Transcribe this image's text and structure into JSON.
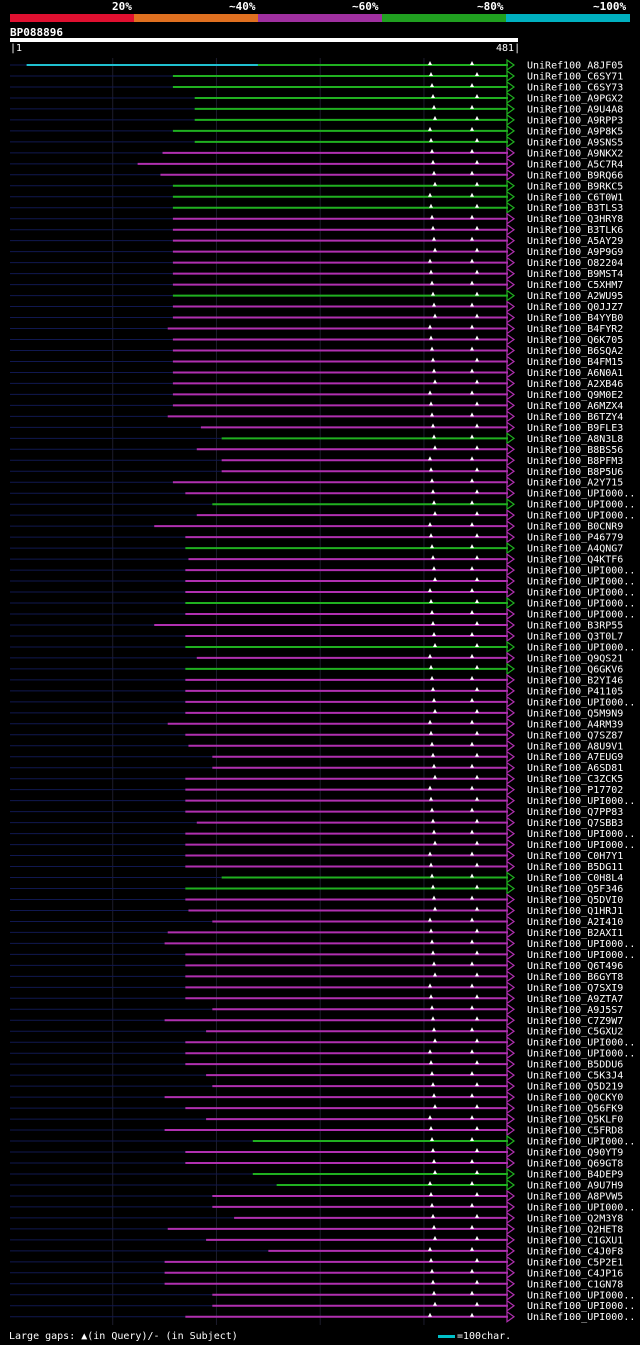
{
  "legend": {
    "labels": [
      "20%",
      "~40%",
      "~60%",
      "~80%",
      "~100%"
    ],
    "colors": [
      "#e01030",
      "#e07020",
      "#a030a0",
      "#20a020",
      "#00b0c0"
    ]
  },
  "query": {
    "name": "BP088896",
    "start": "1",
    "end": "481",
    "length": 481
  },
  "hit_colors": {
    "cyan": "#20c0d0",
    "green": "#20b020",
    "magenta": "#b030b0",
    "line": "#101850"
  },
  "hits": [
    {
      "label": "UniRef100_A8JF05",
      "start": 17,
      "color": "cyan",
      "split": 240
    },
    {
      "label": "UniRef100_C6SY71",
      "start": 158,
      "color": "green"
    },
    {
      "label": "UniRef100_C6SY73",
      "start": 158,
      "color": "green"
    },
    {
      "label": "UniRef100_A9PGX2",
      "start": 179,
      "color": "green"
    },
    {
      "label": "UniRef100_A9U4A8",
      "start": 179,
      "color": "green"
    },
    {
      "label": "UniRef100_A9RPP3",
      "start": 179,
      "color": "green"
    },
    {
      "label": "UniRef100_A9P8K5",
      "start": 158,
      "color": "green"
    },
    {
      "label": "UniRef100_A9SNS5",
      "start": 179,
      "color": "green"
    },
    {
      "label": "UniRef100_A9NKX2",
      "start": 148,
      "color": "magenta"
    },
    {
      "label": "UniRef100_A5C7R4",
      "start": 124,
      "color": "magenta"
    },
    {
      "label": "UniRef100_B9RQ66",
      "start": 146,
      "color": "magenta"
    },
    {
      "label": "UniRef100_B9RKC5",
      "start": 158,
      "color": "green"
    },
    {
      "label": "UniRef100_C6T0W1",
      "start": 158,
      "color": "green"
    },
    {
      "label": "UniRef100_B3TLS3",
      "start": 158,
      "color": "green"
    },
    {
      "label": "UniRef100_Q3HRY8",
      "start": 158,
      "color": "magenta"
    },
    {
      "label": "UniRef100_B3TLK6",
      "start": 158,
      "color": "magenta"
    },
    {
      "label": "UniRef100_A5AY29",
      "start": 158,
      "color": "magenta"
    },
    {
      "label": "UniRef100_A9P9G9",
      "start": 158,
      "color": "magenta"
    },
    {
      "label": "UniRef100_O82204",
      "start": 158,
      "color": "magenta"
    },
    {
      "label": "UniRef100_B9MST4",
      "start": 158,
      "color": "magenta"
    },
    {
      "label": "UniRef100_C5XHM7",
      "start": 158,
      "color": "magenta"
    },
    {
      "label": "UniRef100_A2WU95",
      "start": 158,
      "color": "green"
    },
    {
      "label": "UniRef100_Q0JJZ7",
      "start": 158,
      "color": "magenta"
    },
    {
      "label": "UniRef100_B4YYB0",
      "start": 158,
      "color": "magenta"
    },
    {
      "label": "UniRef100_B4FYR2",
      "start": 153,
      "color": "magenta"
    },
    {
      "label": "UniRef100_Q6K705",
      "start": 158,
      "color": "magenta"
    },
    {
      "label": "UniRef100_B6SQA2",
      "start": 158,
      "color": "magenta"
    },
    {
      "label": "UniRef100_B4FM15",
      "start": 158,
      "color": "magenta"
    },
    {
      "label": "UniRef100_A6N0A1",
      "start": 158,
      "color": "magenta"
    },
    {
      "label": "UniRef100_A2XB46",
      "start": 158,
      "color": "magenta"
    },
    {
      "label": "UniRef100_Q9M0E2",
      "start": 158,
      "color": "magenta"
    },
    {
      "label": "UniRef100_A6MZX4",
      "start": 158,
      "color": "magenta"
    },
    {
      "label": "UniRef100_B6TZY4",
      "start": 153,
      "color": "magenta"
    },
    {
      "label": "UniRef100_B9FLE3",
      "start": 185,
      "color": "magenta"
    },
    {
      "label": "UniRef100_A8N3L8",
      "start": 205,
      "color": "green"
    },
    {
      "label": "UniRef100_B8BS56",
      "start": 181,
      "color": "magenta"
    },
    {
      "label": "UniRef100_B8PFM3",
      "start": 205,
      "color": "magenta"
    },
    {
      "label": "UniRef100_B8P5U6",
      "start": 205,
      "color": "magenta"
    },
    {
      "label": "UniRef100_A2Y715",
      "start": 158,
      "color": "magenta"
    },
    {
      "label": "UniRef100_UPI000..",
      "start": 170,
      "color": "magenta"
    },
    {
      "label": "UniRef100_UPI000..",
      "start": 196,
      "color": "green"
    },
    {
      "label": "UniRef100_UPI000..",
      "start": 181,
      "color": "magenta"
    },
    {
      "label": "UniRef100_B0CNR9",
      "start": 140,
      "color": "magenta"
    },
    {
      "label": "UniRef100_P46779",
      "start": 170,
      "color": "magenta"
    },
    {
      "label": "UniRef100_A4QNG7",
      "start": 170,
      "color": "green"
    },
    {
      "label": "UniRef100_Q4KTF6",
      "start": 173,
      "color": "magenta"
    },
    {
      "label": "UniRef100_UPI000..",
      "start": 170,
      "color": "magenta"
    },
    {
      "label": "UniRef100_UPI000..",
      "start": 170,
      "color": "magenta"
    },
    {
      "label": "UniRef100_UPI000..",
      "start": 170,
      "color": "magenta"
    },
    {
      "label": "UniRef100_UPI000..",
      "start": 170,
      "color": "green"
    },
    {
      "label": "UniRef100_UPI000..",
      "start": 170,
      "color": "magenta"
    },
    {
      "label": "UniRef100_B3RP55",
      "start": 140,
      "color": "magenta"
    },
    {
      "label": "UniRef100_Q3T0L7",
      "start": 170,
      "color": "magenta"
    },
    {
      "label": "UniRef100_UPI000..",
      "start": 170,
      "color": "green"
    },
    {
      "label": "UniRef100_Q9QS21",
      "start": 181,
      "color": "magenta"
    },
    {
      "label": "UniRef100_Q6GKV6",
      "start": 170,
      "color": "green"
    },
    {
      "label": "UniRef100_B2YI46",
      "start": 170,
      "color": "magenta"
    },
    {
      "label": "UniRef100_P41105",
      "start": 170,
      "color": "magenta"
    },
    {
      "label": "UniRef100_UPI000..",
      "start": 170,
      "color": "magenta"
    },
    {
      "label": "UniRef100_Q5M9N9",
      "start": 170,
      "color": "magenta"
    },
    {
      "label": "UniRef100_A4RM39",
      "start": 153,
      "color": "magenta"
    },
    {
      "label": "UniRef100_Q7SZ87",
      "start": 170,
      "color": "magenta"
    },
    {
      "label": "UniRef100_A8U9V1",
      "start": 173,
      "color": "magenta"
    },
    {
      "label": "UniRef100_A7EUG9",
      "start": 196,
      "color": "magenta"
    },
    {
      "label": "UniRef100_A6SD81",
      "start": 196,
      "color": "magenta"
    },
    {
      "label": "UniRef100_C3ZCK5",
      "start": 170,
      "color": "magenta"
    },
    {
      "label": "UniRef100_P17702",
      "start": 170,
      "color": "magenta"
    },
    {
      "label": "UniRef100_UPI000..",
      "start": 170,
      "color": "magenta"
    },
    {
      "label": "UniRef100_Q7PP83",
      "start": 170,
      "color": "magenta"
    },
    {
      "label": "UniRef100_Q7SBB3",
      "start": 181,
      "color": "magenta"
    },
    {
      "label": "UniRef100_UPI000..",
      "start": 170,
      "color": "magenta"
    },
    {
      "label": "UniRef100_UPI000..",
      "start": 170,
      "color": "magenta"
    },
    {
      "label": "UniRef100_C0H7Y1",
      "start": 170,
      "color": "magenta"
    },
    {
      "label": "UniRef100_B5DG11",
      "start": 170,
      "color": "magenta"
    },
    {
      "label": "UniRef100_C0H8L4",
      "start": 205,
      "color": "green"
    },
    {
      "label": "UniRef100_Q5F346",
      "start": 170,
      "color": "green"
    },
    {
      "label": "UniRef100_Q5DVI0",
      "start": 170,
      "color": "magenta"
    },
    {
      "label": "UniRef100_Q1HRJ1",
      "start": 173,
      "color": "magenta"
    },
    {
      "label": "UniRef100_A2I410",
      "start": 196,
      "color": "magenta"
    },
    {
      "label": "UniRef100_B2AXI1",
      "start": 153,
      "color": "magenta"
    },
    {
      "label": "UniRef100_UPI000..",
      "start": 150,
      "color": "magenta"
    },
    {
      "label": "UniRef100_UPI000..",
      "start": 170,
      "color": "magenta"
    },
    {
      "label": "UniRef100_Q6T496",
      "start": 170,
      "color": "magenta"
    },
    {
      "label": "UniRef100_B6GYT8",
      "start": 170,
      "color": "magenta"
    },
    {
      "label": "UniRef100_Q7SXI9",
      "start": 170,
      "color": "magenta"
    },
    {
      "label": "UniRef100_A9ZTA7",
      "start": 170,
      "color": "magenta"
    },
    {
      "label": "UniRef100_A9J5S7",
      "start": 196,
      "color": "magenta"
    },
    {
      "label": "UniRef100_C7Z9W7",
      "start": 150,
      "color": "magenta"
    },
    {
      "label": "UniRef100_C5GXU2",
      "start": 190,
      "color": "magenta"
    },
    {
      "label": "UniRef100_UPI000..",
      "start": 170,
      "color": "magenta"
    },
    {
      "label": "UniRef100_UPI000..",
      "start": 170,
      "color": "magenta"
    },
    {
      "label": "UniRef100_B5DDU6",
      "start": 170,
      "color": "magenta"
    },
    {
      "label": "UniRef100_C5K3J4",
      "start": 190,
      "color": "magenta"
    },
    {
      "label": "UniRef100_Q5D219",
      "start": 196,
      "color": "magenta"
    },
    {
      "label": "UniRef100_Q0CKY0",
      "start": 150,
      "color": "magenta"
    },
    {
      "label": "UniRef100_Q56FK9",
      "start": 170,
      "color": "magenta"
    },
    {
      "label": "UniRef100_Q5KLF0",
      "start": 190,
      "color": "magenta"
    },
    {
      "label": "UniRef100_C5FRD8",
      "start": 150,
      "color": "magenta"
    },
    {
      "label": "UniRef100_UPI000..",
      "start": 235,
      "color": "green"
    },
    {
      "label": "UniRef100_Q90YT9",
      "start": 170,
      "color": "magenta"
    },
    {
      "label": "UniRef100_Q69GT8",
      "start": 170,
      "color": "magenta"
    },
    {
      "label": "UniRef100_B4DEP9",
      "start": 235,
      "color": "green"
    },
    {
      "label": "UniRef100_A9U7H9",
      "start": 258,
      "color": "green"
    },
    {
      "label": "UniRef100_A8PVW5",
      "start": 196,
      "color": "magenta"
    },
    {
      "label": "UniRef100_UPI000..",
      "start": 196,
      "color": "magenta"
    },
    {
      "label": "UniRef100_Q2M3Y8",
      "start": 217,
      "color": "magenta"
    },
    {
      "label": "UniRef100_Q2HET8",
      "start": 153,
      "color": "magenta"
    },
    {
      "label": "UniRef100_C1GXU1",
      "start": 190,
      "color": "magenta"
    },
    {
      "label": "UniRef100_C4J0F8",
      "start": 250,
      "color": "magenta"
    },
    {
      "label": "UniRef100_C5P2E1",
      "start": 150,
      "color": "magenta"
    },
    {
      "label": "UniRef100_C4JP16",
      "start": 150,
      "color": "magenta"
    },
    {
      "label": "UniRef100_C1GN78",
      "start": 150,
      "color": "magenta"
    },
    {
      "label": "UniRef100_UPI000..",
      "start": 196,
      "color": "magenta"
    },
    {
      "label": "UniRef100_UPI000..",
      "start": 196,
      "color": "magenta"
    },
    {
      "label": "UniRef100_UPI000..",
      "start": 170,
      "color": "magenta"
    }
  ],
  "footer": {
    "gaps": "Large gaps: ▲(in Query)/- (in Subject)",
    "scale": "=100char."
  }
}
